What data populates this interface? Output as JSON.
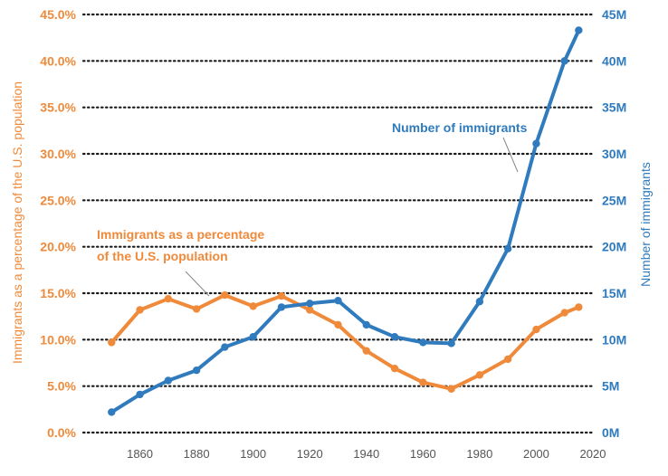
{
  "chart_data": {
    "type": "line",
    "xlim": [
      1840,
      2020
    ],
    "x_ticks": [
      1860,
      1880,
      1900,
      1920,
      1940,
      1960,
      1980,
      2000,
      2020
    ],
    "left_axis": {
      "label": "Immigrants as a percentage of the U.S. population",
      "range": [
        0,
        45
      ],
      "ticks": [
        "0.0%",
        "5.0%",
        "10.0%",
        "15.0%",
        "20.0%",
        "25.0%",
        "30.0%",
        "35.0%",
        "40.0%",
        "45.0%"
      ],
      "color": "#f08a3b"
    },
    "right_axis": {
      "label": "Number of immigrants",
      "range": [
        0,
        45
      ],
      "ticks": [
        "0M",
        "5M",
        "10M",
        "15M",
        "20M",
        "25M",
        "30M",
        "35M",
        "40M",
        "45M"
      ],
      "color": "#2f7bbd"
    },
    "grid": true,
    "series": [
      {
        "name": "Immigrants as a percentage of the U.S. population",
        "axis": "left",
        "color": "#f08a3b",
        "x": [
          1850,
          1860,
          1870,
          1880,
          1890,
          1900,
          1910,
          1920,
          1930,
          1940,
          1950,
          1960,
          1970,
          1980,
          1990,
          2000,
          2010,
          2015
        ],
        "y": [
          9.7,
          13.2,
          14.4,
          13.3,
          14.8,
          13.6,
          14.7,
          13.2,
          11.6,
          8.8,
          6.9,
          5.4,
          4.7,
          6.2,
          7.9,
          11.1,
          12.9,
          13.5
        ]
      },
      {
        "name": "Number of immigrants",
        "axis": "right",
        "color": "#2f7bbd",
        "x": [
          1850,
          1860,
          1870,
          1880,
          1890,
          1900,
          1910,
          1920,
          1930,
          1940,
          1950,
          1960,
          1970,
          1980,
          1990,
          2000,
          2010,
          2015
        ],
        "y": [
          2.2,
          4.1,
          5.6,
          6.7,
          9.2,
          10.3,
          13.5,
          13.9,
          14.2,
          11.6,
          10.3,
          9.7,
          9.6,
          14.1,
          19.8,
          31.1,
          40.0,
          43.3
        ]
      }
    ],
    "annotations": [
      {
        "series": 0,
        "lines": [
          "Immigrants as a percentage",
          "of the U.S. population"
        ]
      },
      {
        "series": 1,
        "lines": [
          "Number of immigrants"
        ]
      }
    ]
  }
}
